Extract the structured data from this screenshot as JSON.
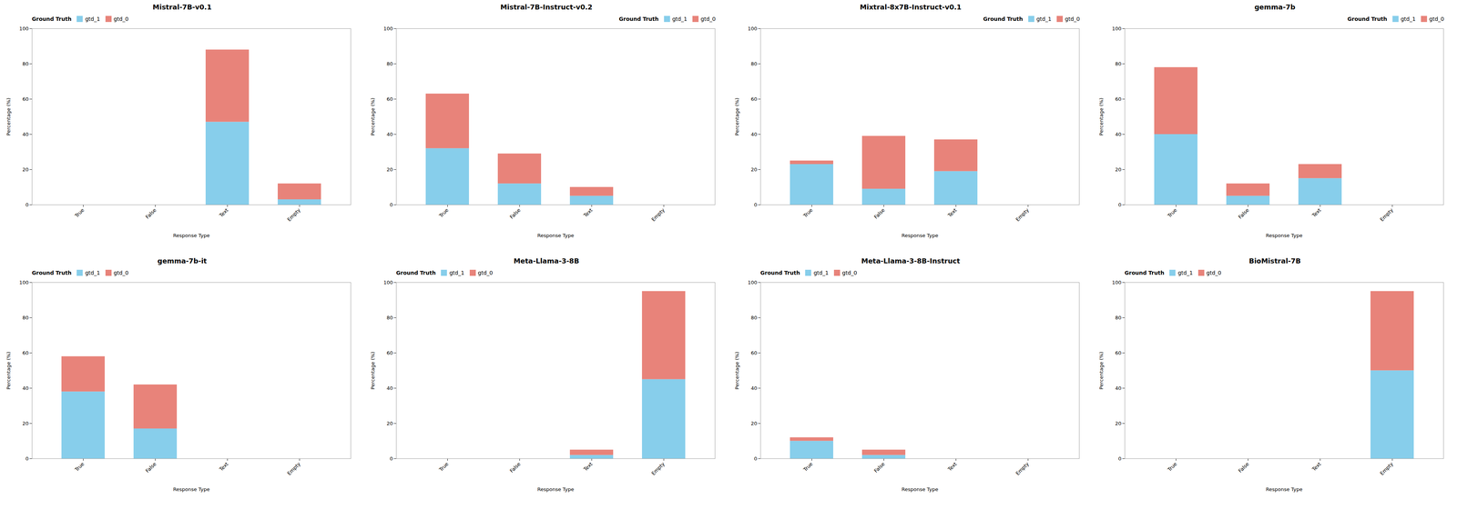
{
  "chart_data": [
    {
      "type": "bar",
      "title": "Mistral-7B-v0.1",
      "stacked": true,
      "legend": "upper left",
      "legend_title": "Ground Truth",
      "categories": [
        "True",
        "False",
        "Text",
        "Empty"
      ],
      "series": [
        {
          "name": "gtd_1",
          "color": "#87CEEB",
          "values": [
            0,
            0,
            47,
            3
          ]
        },
        {
          "name": "gtd_0",
          "color": "#E8837A",
          "values": [
            0,
            0,
            41,
            9
          ]
        }
      ],
      "xlabel": "Response Type",
      "ylabel": "Percentage (%)",
      "ylim": [
        0,
        100
      ],
      "yticks": [
        0,
        20,
        40,
        60,
        80,
        100
      ],
      "grid": false
    },
    {
      "type": "bar",
      "title": "Mistral-7B-Instruct-v0.2",
      "stacked": true,
      "legend": "upper right",
      "legend_title": "Ground Truth",
      "categories": [
        "True",
        "False",
        "Text",
        "Empty"
      ],
      "series": [
        {
          "name": "gtd_1",
          "color": "#87CEEB",
          "values": [
            32,
            12,
            5,
            0
          ]
        },
        {
          "name": "gtd_0",
          "color": "#E8837A",
          "values": [
            31,
            17,
            5,
            0
          ]
        }
      ],
      "xlabel": "Response Type",
      "ylabel": "Percentage (%)",
      "ylim": [
        0,
        100
      ],
      "yticks": [
        0,
        20,
        40,
        60,
        80,
        100
      ],
      "grid": false
    },
    {
      "type": "bar",
      "title": "Mixtral-8x7B-Instruct-v0.1",
      "stacked": true,
      "legend": "upper right",
      "legend_title": "Ground Truth",
      "categories": [
        "True",
        "False",
        "Text",
        "Empty"
      ],
      "series": [
        {
          "name": "gtd_1",
          "color": "#87CEEB",
          "values": [
            23,
            9,
            19,
            0
          ]
        },
        {
          "name": "gtd_0",
          "color": "#E8837A",
          "values": [
            2,
            30,
            18,
            0
          ]
        }
      ],
      "xlabel": "Response Type",
      "ylabel": "Percentage (%)",
      "ylim": [
        0,
        100
      ],
      "yticks": [
        0,
        20,
        40,
        60,
        80,
        100
      ],
      "grid": false
    },
    {
      "type": "bar",
      "title": "gemma-7b",
      "stacked": true,
      "legend": "upper right",
      "legend_title": "Ground Truth",
      "categories": [
        "True",
        "False",
        "Text",
        "Empty"
      ],
      "series": [
        {
          "name": "gtd_1",
          "color": "#87CEEB",
          "values": [
            40,
            5,
            15,
            0
          ]
        },
        {
          "name": "gtd_0",
          "color": "#E8837A",
          "values": [
            38,
            7,
            8,
            0
          ]
        }
      ],
      "xlabel": "Response Type",
      "ylabel": "Percentage (%)",
      "ylim": [
        0,
        100
      ],
      "yticks": [
        0,
        20,
        40,
        60,
        80,
        100
      ],
      "grid": false
    },
    {
      "type": "bar",
      "title": "gemma-7b-it",
      "stacked": true,
      "legend": "upper left",
      "legend_title": "Ground Truth",
      "categories": [
        "True",
        "False",
        "Text",
        "Empty"
      ],
      "series": [
        {
          "name": "gtd_1",
          "color": "#87CEEB",
          "values": [
            38,
            17,
            0,
            0
          ]
        },
        {
          "name": "gtd_0",
          "color": "#E8837A",
          "values": [
            20,
            25,
            0,
            0
          ]
        }
      ],
      "xlabel": "Response Type",
      "ylabel": "Percentage (%)",
      "ylim": [
        0,
        100
      ],
      "yticks": [
        0,
        20,
        40,
        60,
        80,
        100
      ],
      "grid": false
    },
    {
      "type": "bar",
      "title": "Meta-Llama-3-8B",
      "stacked": true,
      "legend": "upper left",
      "legend_title": "Ground Truth",
      "categories": [
        "True",
        "False",
        "Text",
        "Empty"
      ],
      "series": [
        {
          "name": "gtd_1",
          "color": "#87CEEB",
          "values": [
            0,
            0,
            2,
            45
          ]
        },
        {
          "name": "gtd_0",
          "color": "#E8837A",
          "values": [
            0,
            0,
            3,
            50
          ]
        }
      ],
      "xlabel": "Response Type",
      "ylabel": "Percentage (%)",
      "ylim": [
        0,
        100
      ],
      "yticks": [
        0,
        20,
        40,
        60,
        80,
        100
      ],
      "grid": false
    },
    {
      "type": "bar",
      "title": "Meta-Llama-3-8B-Instruct",
      "stacked": true,
      "legend": "upper left",
      "legend_title": "Ground Truth",
      "categories": [
        "True",
        "False",
        "Text",
        "Empty"
      ],
      "series": [
        {
          "name": "gtd_1",
          "color": "#87CEEB",
          "values": [
            10,
            2,
            0,
            0
          ]
        },
        {
          "name": "gtd_0",
          "color": "#E8837A",
          "values": [
            2,
            3,
            0,
            0
          ]
        }
      ],
      "xlabel": "Response Type",
      "ylabel": "Percentage (%)",
      "ylim": [
        0,
        100
      ],
      "yticks": [
        0,
        20,
        40,
        60,
        80,
        100
      ],
      "grid": false
    },
    {
      "type": "bar",
      "title": "BioMistral-7B",
      "stacked": true,
      "legend": "upper left",
      "legend_title": "Ground Truth",
      "categories": [
        "True",
        "False",
        "Text",
        "Empty"
      ],
      "series": [
        {
          "name": "gtd_1",
          "color": "#87CEEB",
          "values": [
            0,
            0,
            0,
            50
          ]
        },
        {
          "name": "gtd_0",
          "color": "#E8837A",
          "values": [
            0,
            0,
            0,
            45
          ]
        }
      ],
      "xlabel": "Response Type",
      "ylabel": "Percentage (%)",
      "ylim": [
        0,
        100
      ],
      "yticks": [
        0,
        20,
        40,
        60,
        80,
        100
      ],
      "grid": false
    }
  ]
}
